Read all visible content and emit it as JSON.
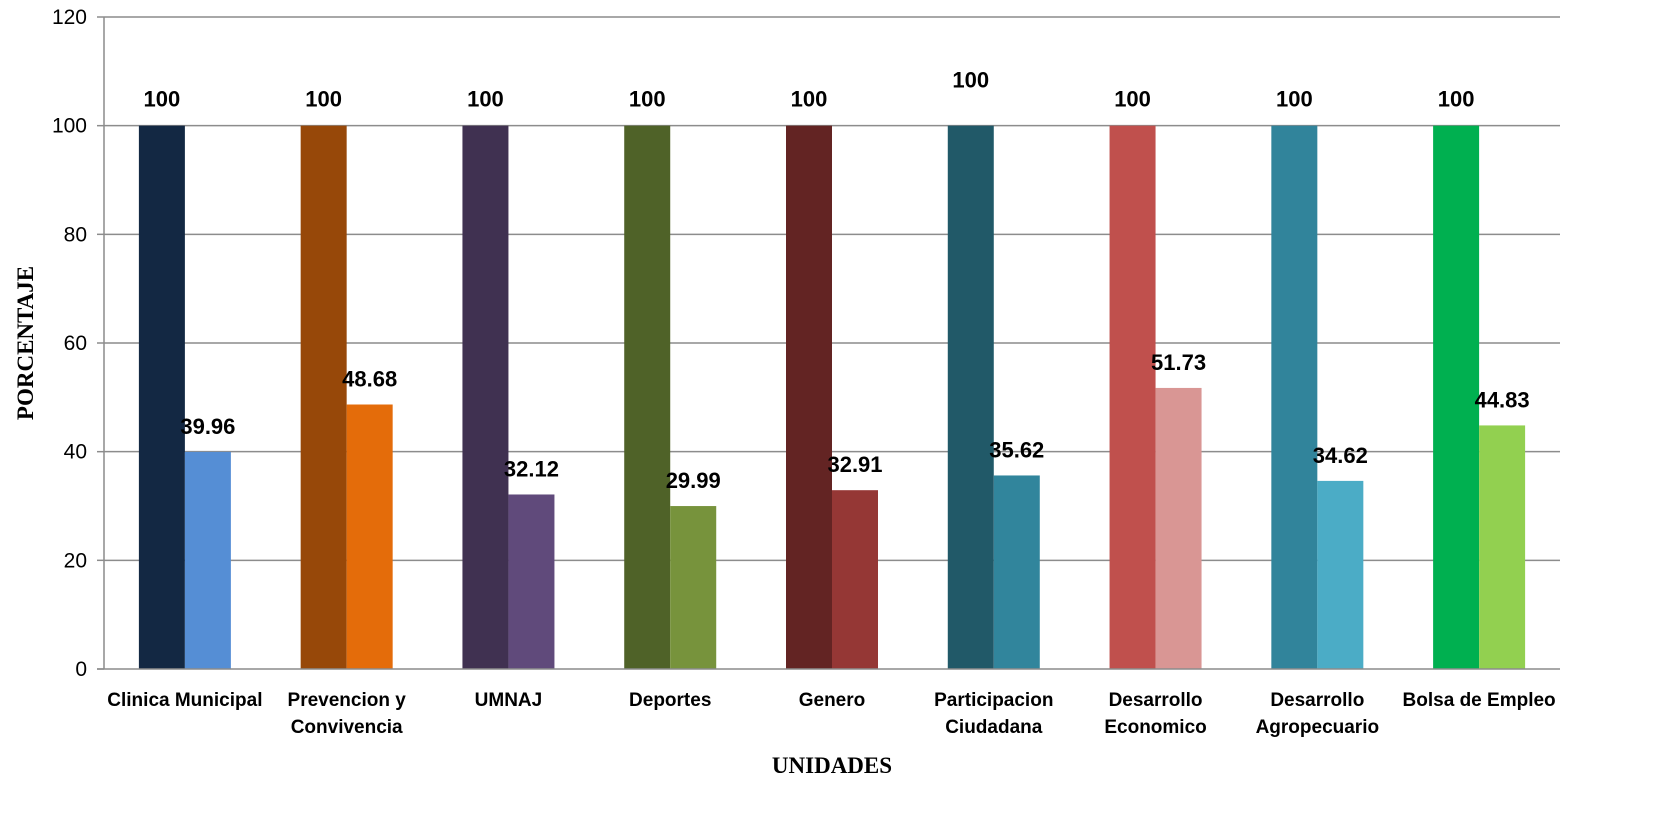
{
  "chart_data": {
    "type": "bar",
    "title": "",
    "xlabel": "UNIDADES",
    "ylabel": "PORCENTAJE",
    "ylim": [
      0,
      120
    ],
    "yticks": [
      0,
      20,
      40,
      60,
      80,
      100,
      120
    ],
    "grid": true,
    "legend": "none",
    "categories": [
      [
        "Clinica Municipal"
      ],
      [
        "Prevencion y",
        "Convivencia"
      ],
      [
        "UMNAJ"
      ],
      [
        "Deportes"
      ],
      [
        "Genero"
      ],
      [
        "Participacion",
        "Ciudadana"
      ],
      [
        "Desarrollo",
        "Economico"
      ],
      [
        "Desarrollo",
        "Agropecuario"
      ],
      [
        "Bolsa de Empleo"
      ]
    ],
    "series": [
      {
        "values": [
          100,
          100,
          100,
          100,
          100,
          100,
          100,
          100,
          100
        ],
        "labels": [
          "100",
          "100",
          "100",
          "100",
          "100",
          "100",
          "100",
          "100",
          "100"
        ],
        "colors": [
          "#132843",
          "#974809",
          "#403151",
          "#4f6228",
          "#632423",
          "#215968",
          "#c0504d",
          "#31849b",
          "#00b050"
        ]
      },
      {
        "values": [
          39.96,
          48.68,
          32.12,
          29.99,
          32.91,
          35.62,
          51.73,
          34.62,
          44.83
        ],
        "labels": [
          "39.96",
          "48.68",
          "32.12",
          "29.99",
          "32.91",
          "35.62",
          "51.73",
          "34.62",
          "44.83"
        ],
        "colors": [
          "#558ed5",
          "#e46c0a",
          "#604a7b",
          "#77933c",
          "#953735",
          "#31859c",
          "#d99694",
          "#4bacc6",
          "#92d050"
        ]
      }
    ]
  }
}
